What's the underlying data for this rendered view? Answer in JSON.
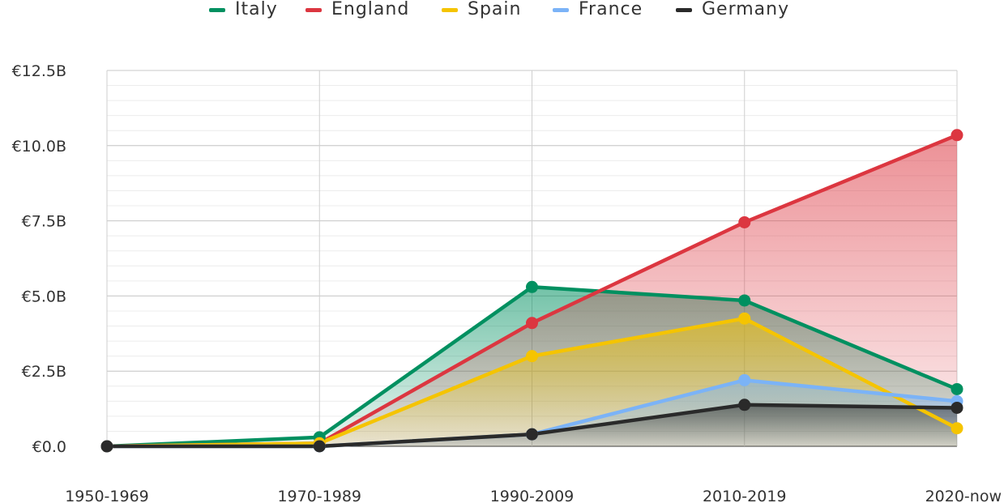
{
  "chart_data": {
    "type": "area",
    "categories": [
      "1950-1969",
      "1970-1989",
      "1990-2009",
      "2010-2019",
      "2020-now"
    ],
    "y_ticks": [
      "€0.0",
      "€2.5B",
      "€5.0B",
      "€7.5B",
      "€10.0B",
      "€12.5B"
    ],
    "ylim": [
      0,
      12.5
    ],
    "grid": true,
    "legend_position": "top",
    "series": [
      {
        "name": "Italy",
        "color": "#009060",
        "values": [
          0.0,
          0.3,
          5.3,
          4.85,
          1.9
        ]
      },
      {
        "name": "England",
        "color": "#DC3640",
        "values": [
          0.0,
          0.1,
          4.1,
          7.45,
          10.35
        ]
      },
      {
        "name": "Spain",
        "color": "#F5C400",
        "values": [
          0.0,
          0.1,
          3.0,
          4.25,
          0.6
        ]
      },
      {
        "name": "France",
        "color": "#7BB3F7",
        "values": [
          0.0,
          0.0,
          0.4,
          2.2,
          1.5
        ]
      },
      {
        "name": "Germany",
        "color": "#2A2A2A",
        "values": [
          0.0,
          0.0,
          0.4,
          1.38,
          1.28
        ]
      }
    ]
  }
}
